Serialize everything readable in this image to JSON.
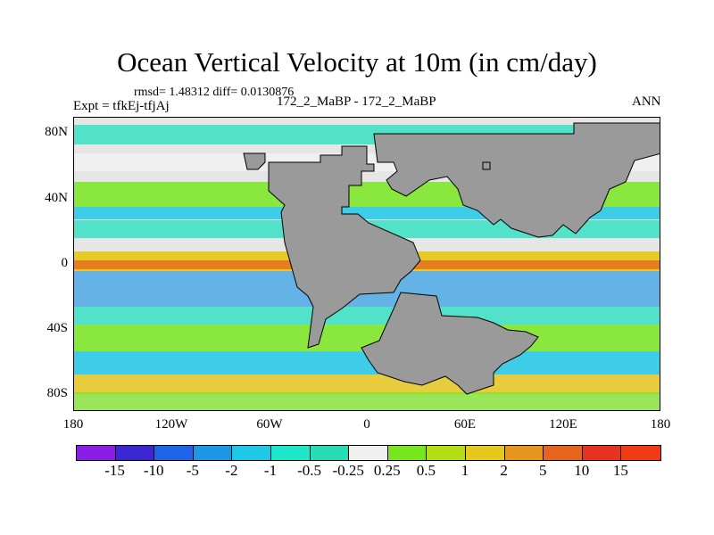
{
  "title": "Ocean Vertical Velocity at 10m (in cm/day)",
  "stats": "rmsd= 1.48312 diff= 0.0130876",
  "expt": "Expt = tfkEj-tfjAj",
  "case": "172_2_MaBP - 172_2_MaBP",
  "season": "ANN",
  "map": {
    "lat_labels": [
      "80N",
      "40N",
      "0",
      "40S",
      "80S"
    ],
    "lon_labels": [
      "180",
      "120W",
      "60W",
      "0",
      "60E",
      "120E",
      "180"
    ],
    "land_color": "#9a9a9a"
  },
  "colorbar": {
    "labels": [
      "-15",
      "-10",
      "-5",
      "-2",
      "-1",
      "-0.5",
      "-0.25",
      "0.25",
      "0.5",
      "1",
      "2",
      "5",
      "10",
      "15"
    ],
    "colors": [
      "#8a1ee6",
      "#3c28d2",
      "#1e64e6",
      "#1e96e6",
      "#1ec8e6",
      "#1ee6c8",
      "#28dcb4",
      "#f0f0f0",
      "#78e61e",
      "#b4dc14",
      "#e6c81e",
      "#e6961e",
      "#e6641e",
      "#e6321e",
      "#f03c14"
    ]
  }
}
